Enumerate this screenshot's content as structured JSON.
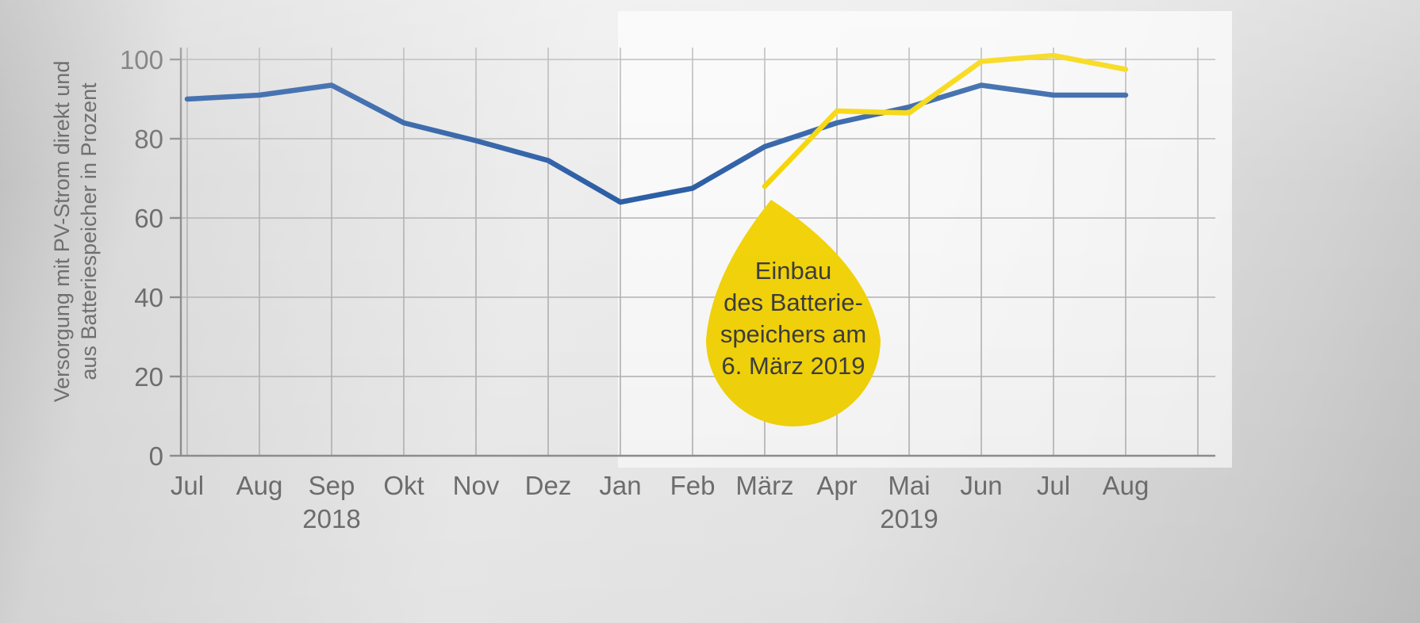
{
  "colors": {
    "background_left": "#b9b9b9",
    "background_center": "#ededed",
    "highlight_region": "rgba(253,253,253,0.72)",
    "grid": "#b3b3b3",
    "axis": "#8f8f8f",
    "tick_text": "#6f6f6f",
    "blue_line": "#2d5fa6",
    "yellow_line": "#f6d500"
  },
  "chart_data": {
    "type": "line",
    "title": "",
    "xlabel": "",
    "ylabel": "Versorgung mit PV-Strom direkt und aus Batteriespeicher in Prozent",
    "ylabel_lines": [
      "Versorgung mit PV-Strom direkt und",
      "aus Batteriespeicher in Prozent"
    ],
    "categories": [
      "Jul",
      "Aug",
      "Sep",
      "Okt",
      "Nov",
      "Dez",
      "Jan",
      "Feb",
      "März",
      "Apr",
      "Mai",
      "Jun",
      "Jul",
      "Aug"
    ],
    "year_labels": [
      {
        "label": "2018",
        "category_index": 2
      },
      {
        "label": "2019",
        "category_index": 10
      }
    ],
    "ylim": [
      0,
      105
    ],
    "yticks": [
      0,
      20,
      40,
      60,
      80,
      100
    ],
    "grid": true,
    "legend": "none",
    "series": [
      {
        "id": "series-blue",
        "color": "#2d5fa6",
        "values": [
          90,
          91,
          93.5,
          84,
          79.5,
          74.5,
          64,
          67.5,
          78,
          84,
          88,
          93.5,
          91,
          91
        ]
      },
      {
        "id": "series-yellow",
        "color": "#f6d500",
        "values": [
          null,
          null,
          null,
          null,
          null,
          null,
          null,
          null,
          68,
          87,
          86.5,
          99.5,
          101,
          97.5
        ]
      }
    ],
    "highlight_region": {
      "from_category_index": 6
    },
    "annotation": {
      "shape": "drop",
      "color": "#f2d30b",
      "text_color": "#3d3d3d",
      "lines": [
        "Einbau",
        "des Batterie-",
        "speichers am",
        "6. März 2019"
      ]
    }
  }
}
